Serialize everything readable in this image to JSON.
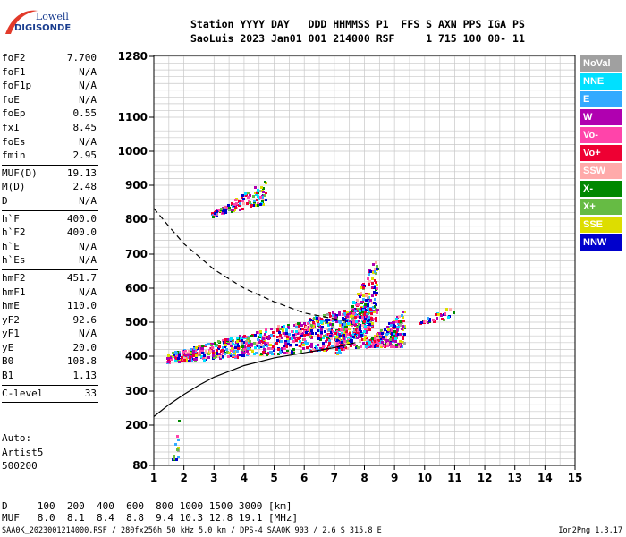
{
  "logo": {
    "line1": "Lowell",
    "line2": "DIGISONDE"
  },
  "header": {
    "line1": "Station YYYY DAY   DDD HHMMSS P1  FFS S AXN PPS IGA PS",
    "line2": "SaoLuis 2023 Jan01 001 214000 RSF     1 715 100 00- 11"
  },
  "params": {
    "group1": [
      {
        "name": "foF2",
        "value": "7.700"
      },
      {
        "name": "foF1",
        "value": "N/A"
      },
      {
        "name": "foF1p",
        "value": "N/A"
      },
      {
        "name": "foE",
        "value": "N/A"
      },
      {
        "name": "foEp",
        "value": "0.55"
      },
      {
        "name": "fxI",
        "value": "8.45"
      },
      {
        "name": "foEs",
        "value": "N/A"
      },
      {
        "name": "fmin",
        "value": "2.95"
      }
    ],
    "group2": [
      {
        "name": "MUF(D)",
        "value": "19.13"
      },
      {
        "name": "M(D)",
        "value": "2.48"
      },
      {
        "name": "D",
        "value": "N/A"
      }
    ],
    "group3": [
      {
        "name": "h`F",
        "value": "400.0"
      },
      {
        "name": "h`F2",
        "value": "400.0"
      },
      {
        "name": "h`E",
        "value": "N/A"
      },
      {
        "name": "h`Es",
        "value": "N/A"
      }
    ],
    "group4": [
      {
        "name": "hmF2",
        "value": "451.7"
      },
      {
        "name": "hmF1",
        "value": "N/A"
      },
      {
        "name": "hmE",
        "value": "110.0"
      },
      {
        "name": "yF2",
        "value": "92.6"
      },
      {
        "name": "yF1",
        "value": "N/A"
      },
      {
        "name": "yE",
        "value": "20.0"
      },
      {
        "name": "B0",
        "value": "108.8"
      },
      {
        "name": "B1",
        "value": "1.13"
      }
    ],
    "group5": [
      {
        "name": "C-level",
        "value": "33"
      }
    ]
  },
  "auto": {
    "line1": "Auto:",
    "line2": "Artist5",
    "line3": "500200"
  },
  "legend": [
    {
      "label": "NoVal",
      "color": "#a0a0a0"
    },
    {
      "label": "NNE",
      "color": "#00e0ff"
    },
    {
      "label": "E",
      "color": "#33aaff"
    },
    {
      "label": "W",
      "color": "#b000b0"
    },
    {
      "label": "Vo-",
      "color": "#ff44aa"
    },
    {
      "label": "Vo+",
      "color": "#ee0033"
    },
    {
      "label": "SSW",
      "color": "#ffaaaa"
    },
    {
      "label": "X-",
      "color": "#008800"
    },
    {
      "label": "X+",
      "color": "#66bb44"
    },
    {
      "label": "SSE",
      "color": "#dddd00"
    },
    {
      "label": "NNW",
      "color": "#0000cc"
    }
  ],
  "dmuf": {
    "d_line": "D     100  200  400  600  800 1000 1500 3000 [km]",
    "muf_line": "MUF   8.0  8.1  8.4  8.8  9.4 10.3 12.8 19.1 [MHz]"
  },
  "footer": {
    "left": "SAA0K_2023001214000.RSF / 280fx256h 50 kHz 5.0 km / DPS-4 SAA0K 903 / 2.6 S 315.8 E",
    "right": "Ion2Png 1.3.17"
  },
  "chart_data": {
    "type": "scatter",
    "xlim": [
      1,
      15
    ],
    "ylim": [
      80,
      1280
    ],
    "x_ticks": [
      1,
      2,
      3,
      4,
      5,
      6,
      7,
      8,
      9,
      10,
      11,
      12,
      13,
      14,
      15
    ],
    "y_ticks": [
      80,
      200,
      300,
      400,
      500,
      600,
      700,
      800,
      900,
      1000,
      1100,
      1280
    ],
    "grid": true,
    "clusters": [
      {
        "name": "F-trace main",
        "x_range": [
          1.4,
          8.2
        ],
        "y_base": [
          385,
          430
        ],
        "y_spread": [
          25,
          130
        ],
        "n": 900
      },
      {
        "name": "F-trace cusp",
        "x_range": [
          7.0,
          8.4
        ],
        "y_base": [
          400,
          500
        ],
        "y_spread": [
          60,
          200
        ],
        "n": 350
      },
      {
        "name": "F-trace spread",
        "x_range": [
          8.0,
          9.3
        ],
        "y_base": [
          430,
          430
        ],
        "y_spread": [
          10,
          110
        ],
        "n": 260
      },
      {
        "name": "high echoes",
        "x_range": [
          2.9,
          4.7
        ],
        "y_base": [
          810,
          850
        ],
        "y_spread": [
          10,
          70
        ],
        "n": 130
      },
      {
        "name": "sparse tail",
        "x_range": [
          9.8,
          11.0
        ],
        "y_base": [
          500,
          510
        ],
        "y_spread": [
          0,
          60
        ],
        "n": 35
      },
      {
        "name": "low echoes",
        "x_range": [
          1.6,
          1.8
        ],
        "y_base": [
          100,
          100
        ],
        "y_spread": [
          0,
          130
        ],
        "n": 14
      }
    ],
    "profile_curve": [
      [
        1.0,
        225
      ],
      [
        1.5,
        260
      ],
      [
        2.0,
        290
      ],
      [
        2.5,
        317
      ],
      [
        3.0,
        340
      ],
      [
        4.0,
        373
      ],
      [
        5.0,
        395
      ],
      [
        6.0,
        410
      ],
      [
        7.0,
        425
      ],
      [
        7.7,
        440
      ]
    ],
    "dashed_curve": [
      [
        1.0,
        832
      ],
      [
        1.5,
        780
      ],
      [
        2.0,
        730
      ],
      [
        3.0,
        655
      ],
      [
        4.0,
        600
      ],
      [
        5.0,
        560
      ],
      [
        6.0,
        527
      ],
      [
        7.0,
        510
      ],
      [
        7.5,
        500
      ]
    ]
  }
}
